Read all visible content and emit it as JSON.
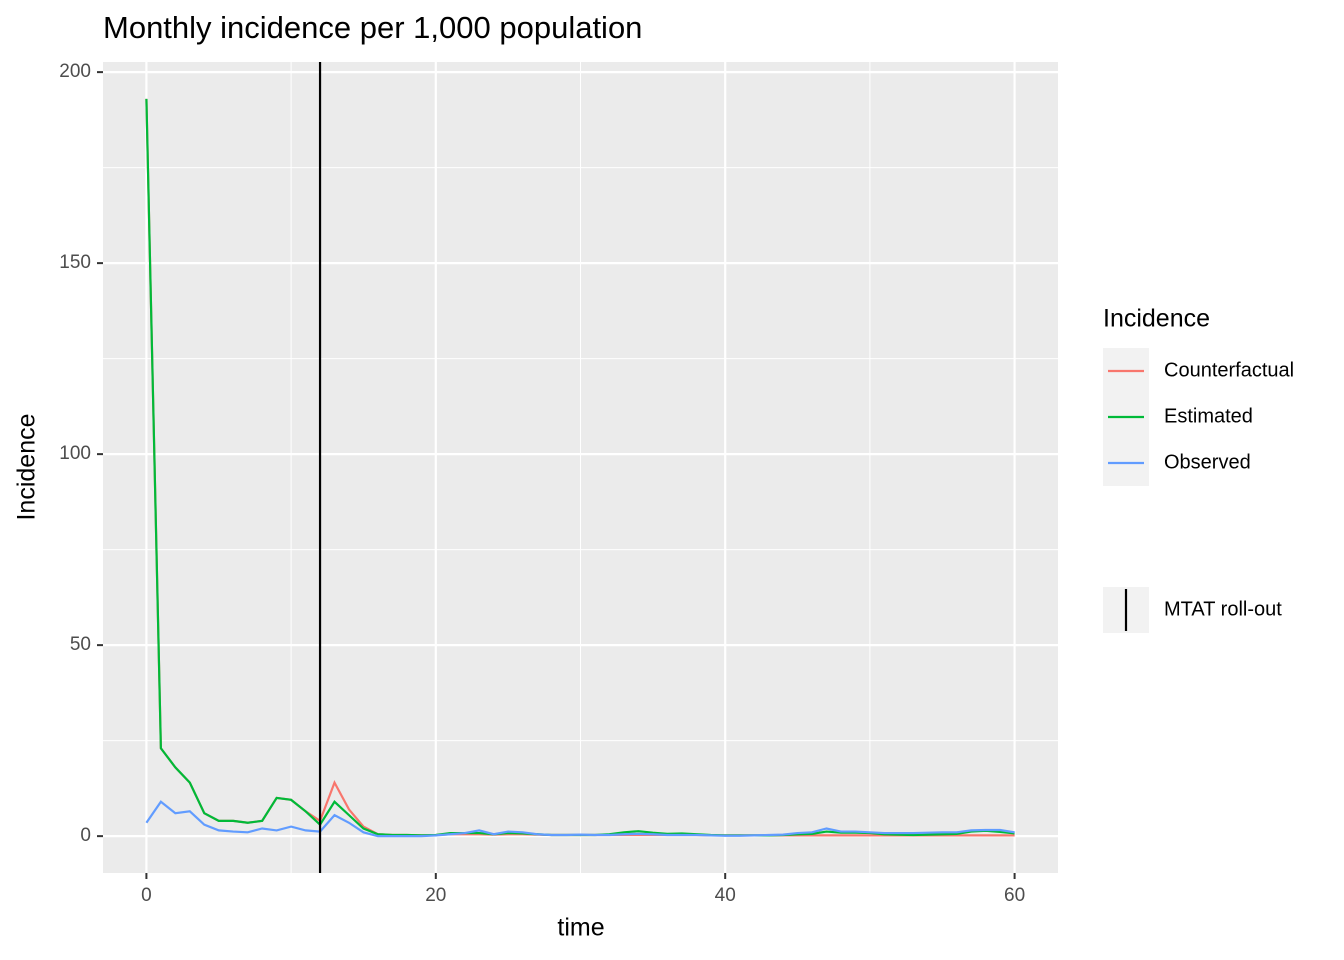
{
  "chart_data": {
    "type": "line",
    "title": "Monthly incidence per 1,000 population",
    "x_label": "time",
    "y_label": "Incidence",
    "legend_title": "Incidence",
    "x": [
      0,
      1,
      2,
      3,
      4,
      5,
      6,
      7,
      8,
      9,
      10,
      11,
      12,
      13,
      14,
      15,
      16,
      17,
      18,
      19,
      20,
      21,
      22,
      23,
      24,
      25,
      26,
      27,
      28,
      29,
      30,
      31,
      32,
      33,
      34,
      35,
      36,
      37,
      38,
      39,
      40,
      41,
      42,
      43,
      44,
      45,
      46,
      47,
      48,
      49,
      50,
      51,
      52,
      53,
      54,
      55,
      56,
      57,
      58,
      59,
      60
    ],
    "series": [
      {
        "name": "Counterfactual",
        "color": "#f8766d",
        "values": [
          193,
          23,
          18,
          14,
          6,
          4,
          4,
          3.5,
          4,
          10,
          9.5,
          6.5,
          4,
          14,
          7,
          2.5,
          0.5,
          0.3,
          0.3,
          0.2,
          0.3,
          0.5,
          0.5,
          0.5,
          0.4,
          0.5,
          0.5,
          0.4,
          0.3,
          0.3,
          0.3,
          0.3,
          0.3,
          0.3,
          0.3,
          0.3,
          0.3,
          0.3,
          0.3,
          0.2,
          0.2,
          0.2,
          0.2,
          0.2,
          0.2,
          0.2,
          0.2,
          0.2,
          0.2,
          0.2,
          0.2,
          0.2,
          0.2,
          0.2,
          0.2,
          0.2,
          0.2,
          0.2,
          0.2,
          0.2,
          0.2
        ]
      },
      {
        "name": "Estimated",
        "color": "#00ba38",
        "values": [
          193,
          23,
          18,
          14,
          6,
          4,
          4,
          3.5,
          4,
          10,
          9.5,
          6.5,
          3,
          9,
          5.5,
          2,
          0.5,
          0.3,
          0.3,
          0.2,
          0.3,
          0.8,
          0.8,
          0.8,
          0.5,
          0.8,
          0.7,
          0.5,
          0.3,
          0.3,
          0.3,
          0.3,
          0.5,
          1,
          1.3,
          0.9,
          0.6,
          0.7,
          0.5,
          0.3,
          0.2,
          0.2,
          0.2,
          0.2,
          0.3,
          0.5,
          0.6,
          1.2,
          0.9,
          0.9,
          0.8,
          0.5,
          0.4,
          0.3,
          0.4,
          0.5,
          0.6,
          1.2,
          1.4,
          1.1,
          0.7
        ]
      },
      {
        "name": "Observed",
        "color": "#619cff",
        "values": [
          3.5,
          9,
          6,
          6.5,
          3,
          1.5,
          1.2,
          1,
          2,
          1.5,
          2.5,
          1.5,
          1.2,
          5.5,
          3.5,
          1,
          0,
          0,
          0,
          0,
          0.2,
          0.5,
          0.8,
          1.5,
          0.5,
          1.2,
          1,
          0.5,
          0.3,
          0.3,
          0.4,
          0.3,
          0.3,
          0.5,
          0.6,
          0.5,
          0.3,
          0.3,
          0.3,
          0.2,
          0.1,
          0.1,
          0.2,
          0.3,
          0.4,
          0.8,
          1,
          2,
          1.2,
          1.2,
          1,
          0.8,
          0.8,
          0.8,
          0.9,
          1,
          1,
          1.5,
          1.6,
          1.6,
          1
        ]
      }
    ],
    "vline": {
      "x": 12,
      "label": "MTAT roll-out",
      "color": "#000000"
    },
    "xlim": [
      -3,
      63
    ],
    "xticks": [
      0,
      20,
      40,
      60
    ],
    "ylim": [
      -9.65,
      202.65
    ],
    "yticks": [
      0,
      50,
      100,
      150,
      200
    ],
    "grid": true
  }
}
